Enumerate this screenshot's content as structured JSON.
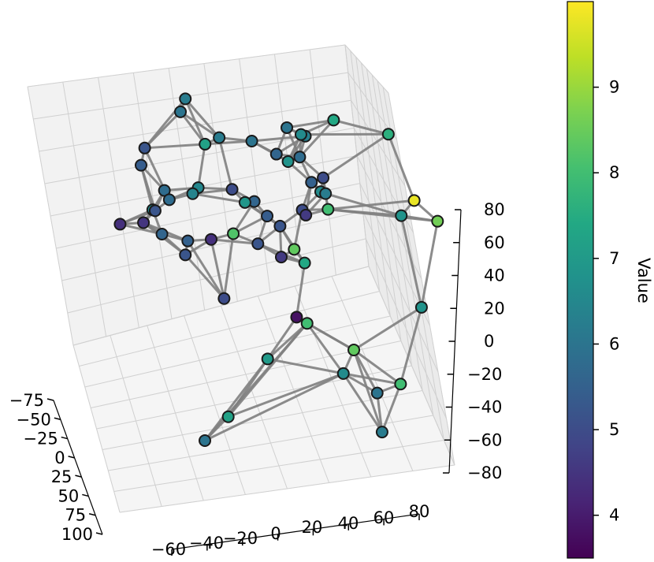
{
  "chart_data": {
    "type": "scatter",
    "projection": "3d",
    "title": "",
    "xlabel": "",
    "ylabel": "",
    "zlabel": "",
    "x_ticks": [
      "−75",
      "−50",
      "−25",
      "0",
      "25",
      "50",
      "75",
      "100"
    ],
    "y_ticks": [
      "−60",
      "−40",
      "−20",
      "0",
      "20",
      "40",
      "60",
      "80"
    ],
    "z_ticks": [
      "80",
      "60",
      "40",
      "20",
      "0",
      "−20",
      "−40",
      "−60",
      "−80"
    ],
    "xlim": [
      -90,
      110
    ],
    "ylim": [
      -70,
      90
    ],
    "zlim": [
      -85,
      90
    ],
    "grid": true,
    "edge_color": "#808080",
    "marker_edge_color": "#1a1a1a",
    "colormap": "viridis",
    "colorbar": {
      "label": "Value",
      "ticks": [
        "9",
        "8",
        "7",
        "6",
        "5",
        "4"
      ],
      "range": [
        3.5,
        10.0
      ]
    },
    "note_points": "approximate reading of the plotted nodes; x,y,z in data units, value = color",
    "points": [
      {
        "x": -70,
        "y": -20,
        "z": 75,
        "v": 6.0
      },
      {
        "x": -45,
        "y": -40,
        "z": 68,
        "v": 5.2
      },
      {
        "x": -55,
        "y": -10,
        "z": 60,
        "v": 7.2
      },
      {
        "x": -40,
        "y": -5,
        "z": 72,
        "v": 6.2
      },
      {
        "x": -35,
        "y": 10,
        "z": 70,
        "v": 6.0
      },
      {
        "x": -20,
        "y": 20,
        "z": 68,
        "v": 5.6
      },
      {
        "x": -15,
        "y": 25,
        "z": 65,
        "v": 6.8
      },
      {
        "x": -30,
        "y": 35,
        "z": 72,
        "v": 6.3
      },
      {
        "x": -10,
        "y": 30,
        "z": 70,
        "v": 5.8
      },
      {
        "x": 0,
        "y": 45,
        "z": 98,
        "v": 7.4
      },
      {
        "x": 10,
        "y": 70,
        "z": 90,
        "v": 7.6
      },
      {
        "x": -20,
        "y": 25,
        "z": 85,
        "v": 6.0
      },
      {
        "x": -5,
        "y": 30,
        "z": 88,
        "v": 6.6
      },
      {
        "x": -50,
        "y": -20,
        "z": 95,
        "v": 6.2
      },
      {
        "x": 30,
        "y": 80,
        "z": 55,
        "v": 9.8
      },
      {
        "x": 40,
        "y": 90,
        "z": 45,
        "v": 8.6
      },
      {
        "x": 20,
        "y": 75,
        "z": 40,
        "v": 6.8
      },
      {
        "x": -10,
        "y": 40,
        "z": 45,
        "v": 6.6
      },
      {
        "x": -60,
        "y": -40,
        "z": 48,
        "v": 5.4
      },
      {
        "x": -30,
        "y": -30,
        "z": 40,
        "v": 5.8
      },
      {
        "x": -20,
        "y": -20,
        "z": 48,
        "v": 6.4
      },
      {
        "x": -50,
        "y": -30,
        "z": 35,
        "v": 5.8
      },
      {
        "x": -40,
        "y": -15,
        "z": 40,
        "v": 6.5
      },
      {
        "x": -30,
        "y": 0,
        "z": 42,
        "v": 5.0
      },
      {
        "x": -25,
        "y": 10,
        "z": 35,
        "v": 5.6
      },
      {
        "x": -20,
        "y": 5,
        "z": 38,
        "v": 6.9
      },
      {
        "x": -15,
        "y": 15,
        "z": 30,
        "v": 5.4
      },
      {
        "x": -5,
        "y": 20,
        "z": 28,
        "v": 5.2
      },
      {
        "x": 0,
        "y": 30,
        "z": 40,
        "v": 5.0
      },
      {
        "x": 10,
        "y": 25,
        "z": 20,
        "v": 8.4
      },
      {
        "x": 15,
        "y": 30,
        "z": 45,
        "v": 4.6
      },
      {
        "x": -60,
        "y": -50,
        "z": 10,
        "v": 4.4
      },
      {
        "x": -50,
        "y": -40,
        "z": 15,
        "v": 4.5
      },
      {
        "x": -55,
        "y": -35,
        "z": 20,
        "v": 6.6
      },
      {
        "x": -45,
        "y": -35,
        "z": 25,
        "v": 5.2
      },
      {
        "x": -40,
        "y": -20,
        "z": 5,
        "v": 5.5
      },
      {
        "x": -30,
        "y": -10,
        "z": 10,
        "v": 4.4
      },
      {
        "x": -25,
        "y": 0,
        "z": 15,
        "v": 8.2
      },
      {
        "x": -10,
        "y": 10,
        "z": 15,
        "v": 5.2
      },
      {
        "x": 0,
        "y": 20,
        "z": 10,
        "v": 4.6
      },
      {
        "x": 10,
        "y": 30,
        "z": 10,
        "v": 7.4
      },
      {
        "x": -60,
        "y": -30,
        "z": 0,
        "v": 5.6
      },
      {
        "x": -50,
        "y": -20,
        "z": -10,
        "v": 5.2
      },
      {
        "x": -20,
        "y": -5,
        "z": -25,
        "v": 5.0
      },
      {
        "x": 20,
        "y": 25,
        "z": -20,
        "v": 3.8
      },
      {
        "x": 20,
        "y": 30,
        "z": -25,
        "v": 8.0
      },
      {
        "x": 40,
        "y": 50,
        "z": -35,
        "v": 8.4
      },
      {
        "x": 60,
        "y": 80,
        "z": 0,
        "v": 6.8
      },
      {
        "x": 40,
        "y": 45,
        "z": -50,
        "v": 6.6
      },
      {
        "x": 30,
        "y": 10,
        "z": -40,
        "v": 7.0
      },
      {
        "x": 70,
        "y": 60,
        "z": -75,
        "v": 6.2
      },
      {
        "x": 60,
        "y": 70,
        "z": -50,
        "v": 8.0
      },
      {
        "x": 50,
        "y": 60,
        "z": -60,
        "v": 6.0
      },
      {
        "x": 30,
        "y": -20,
        "z": -90,
        "v": 6.0
      },
      {
        "x": 40,
        "y": -10,
        "z": -70,
        "v": 7.2
      },
      {
        "x": 0,
        "y": 40,
        "z": 60,
        "v": 5.0
      },
      {
        "x": 10,
        "y": 40,
        "z": 55,
        "v": 6.2
      },
      {
        "x": 20,
        "y": 40,
        "z": 50,
        "v": 8.0
      },
      {
        "x": -5,
        "y": 35,
        "z": 55,
        "v": 5.5
      }
    ]
  }
}
